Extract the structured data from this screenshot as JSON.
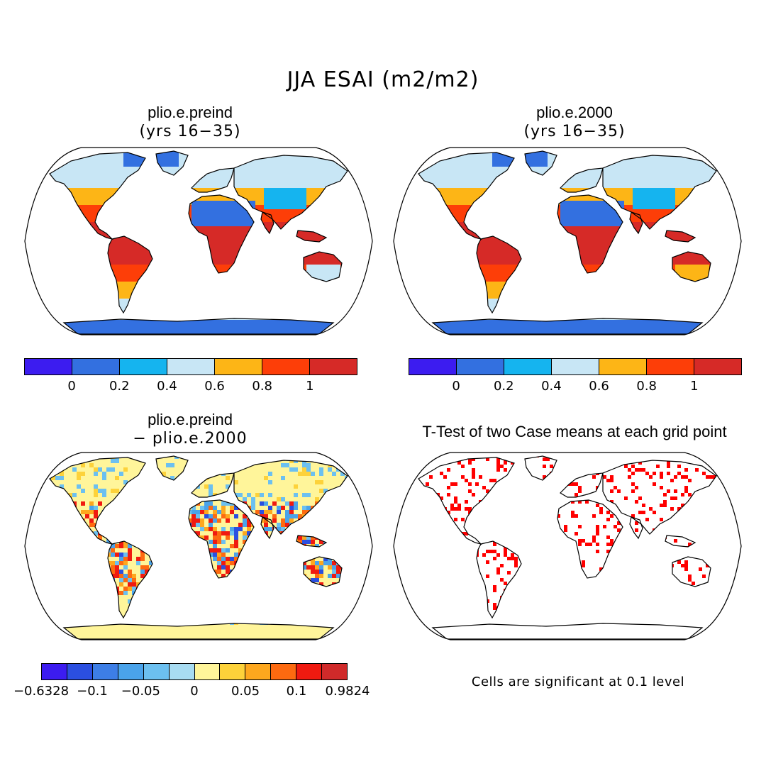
{
  "figure": {
    "title": "JJA ESAI (m2/m2)"
  },
  "panels": [
    {
      "title": "plio.e.preind",
      "subtitle": "(yrs 16−35)",
      "colorbar": {
        "colors": [
          "#3c1cf0",
          "#3370e0",
          "#15b4ef",
          "#c8e6f5",
          "#fdb516",
          "#fd3e08",
          "#d62a27"
        ],
        "tick_labels": [
          "0",
          "0.2",
          "0.4",
          "0.6",
          "0.8",
          "1"
        ]
      }
    },
    {
      "title": "plio.e.2000",
      "subtitle": "(yrs 16−35)",
      "colorbar": {
        "colors": [
          "#3c1cf0",
          "#3370e0",
          "#15b4ef",
          "#c8e6f5",
          "#fdb516",
          "#fd3e08",
          "#d62a27"
        ],
        "tick_labels": [
          "0",
          "0.2",
          "0.4",
          "0.6",
          "0.8",
          "1"
        ]
      }
    },
    {
      "title": "plio.e.preind",
      "subtitle": "− plio.e.2000",
      "colorbar": {
        "colors": [
          "#3c1cf0",
          "#2b4fe0",
          "#3d7ee6",
          "#4aa3ea",
          "#6cc0f0",
          "#a8dcf2",
          "#fff59a",
          "#fdd23a",
          "#fda71e",
          "#fd6a10",
          "#f01a10",
          "#d02a2a"
        ],
        "tick_labels": [
          "−0.6328",
          "−0.1",
          "−0.05",
          "0",
          "0.05",
          "0.1",
          "0.9824"
        ]
      }
    },
    {
      "title": "T-Test of two Case means at each grid point",
      "footnote": "Cells are significant at 0.1 level",
      "significance_color": "#ff0000"
    }
  ]
}
